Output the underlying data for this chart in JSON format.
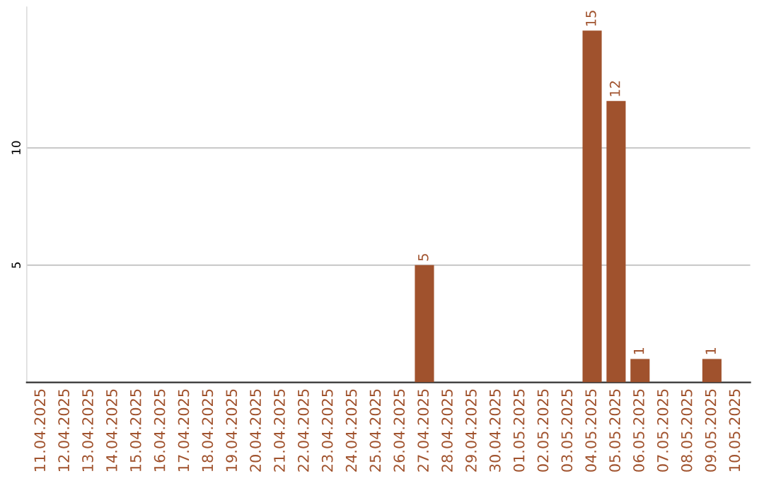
{
  "chart_data": {
    "type": "bar",
    "categories": [
      "11.04.2025",
      "12.04.2025",
      "13.04.2025",
      "14.04.2025",
      "15.04.2025",
      "16.04.2025",
      "17.04.2025",
      "18.04.2025",
      "19.04.2025",
      "20.04.2025",
      "21.04.2025",
      "22.04.2025",
      "23.04.2025",
      "24.04.2025",
      "25.04.2025",
      "26.04.2025",
      "27.04.2025",
      "28.04.2025",
      "29.04.2025",
      "30.04.2025",
      "01.05.2025",
      "02.05.2025",
      "03.05.2025",
      "04.05.2025",
      "05.05.2025",
      "06.05.2025",
      "07.05.2025",
      "08.05.2025",
      "09.05.2025",
      "10.05.2025"
    ],
    "values": [
      0,
      0,
      0,
      0,
      0,
      0,
      0,
      0,
      0,
      0,
      0,
      0,
      0,
      0,
      0,
      0,
      5,
      0,
      0,
      0,
      0,
      0,
      0,
      15,
      12,
      1,
      0,
      0,
      1,
      0
    ],
    "value_labels": [
      null,
      null,
      null,
      null,
      null,
      null,
      null,
      null,
      null,
      null,
      null,
      null,
      null,
      null,
      null,
      null,
      "5",
      null,
      null,
      null,
      null,
      null,
      null,
      "15",
      "12",
      "1",
      null,
      null,
      "1",
      null
    ],
    "color": "#a0522d",
    "ylim": [
      0,
      16
    ],
    "yticks": [
      5,
      10
    ],
    "grid": "y"
  }
}
